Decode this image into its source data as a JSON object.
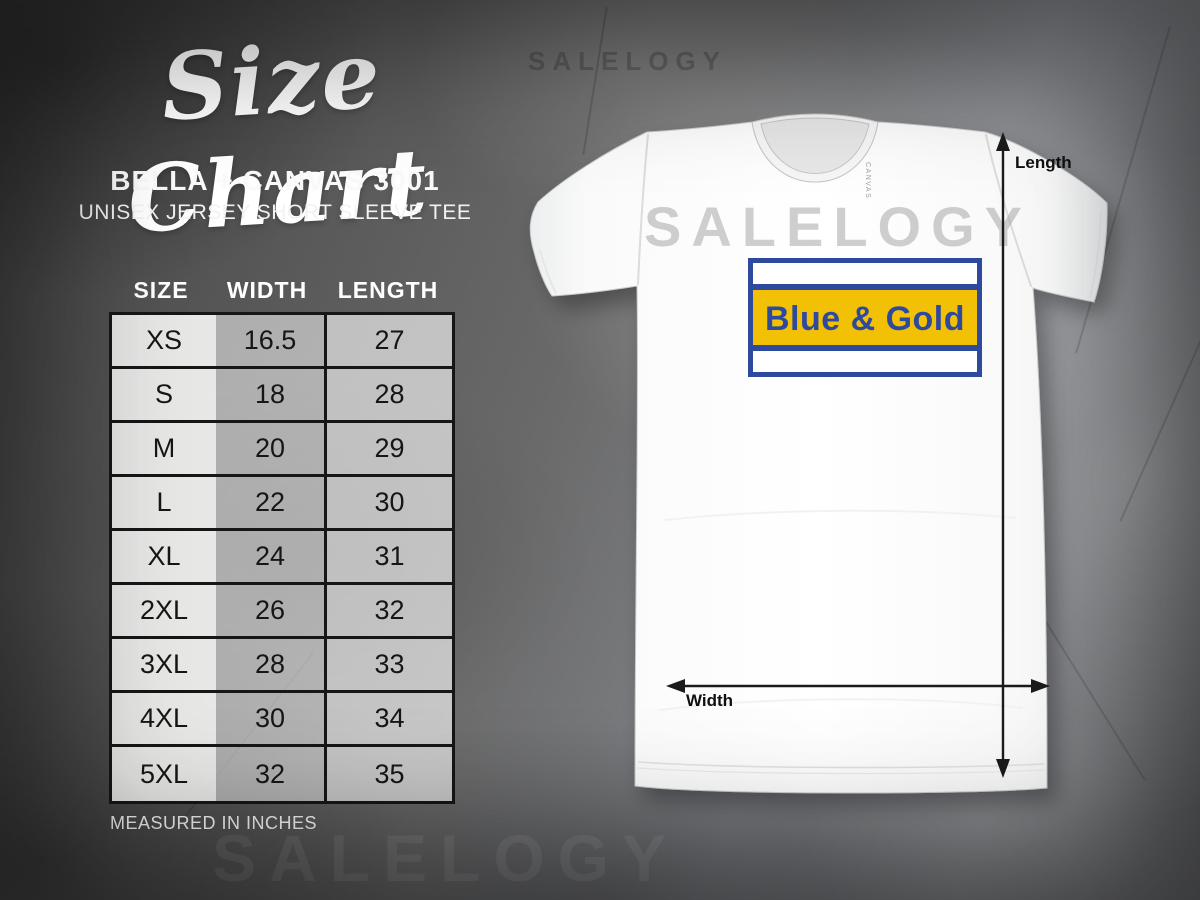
{
  "header": {
    "script_title": "Size Chart",
    "product": "BELLA + CANVAS 3001",
    "subtitle": "UNISEX JERSEY SHORT SLEEVE TEE"
  },
  "size_table": {
    "columns": [
      "SIZE",
      "WIDTH",
      "LENGTH"
    ],
    "rows": [
      [
        "XS",
        "16.5",
        "27"
      ],
      [
        "S",
        "18",
        "28"
      ],
      [
        "M",
        "20",
        "29"
      ],
      [
        "L",
        "22",
        "30"
      ],
      [
        "XL",
        "24",
        "31"
      ],
      [
        "2XL",
        "26",
        "32"
      ],
      [
        "3XL",
        "28",
        "33"
      ],
      [
        "4XL",
        "30",
        "34"
      ],
      [
        "5XL",
        "32",
        "35"
      ]
    ],
    "footnote": "MEASURED IN INCHES"
  },
  "chart_data": {
    "type": "table",
    "title": "Size Chart - Bella + Canvas 3001 Unisex Jersey Short Sleeve Tee",
    "columns": [
      "SIZE",
      "WIDTH",
      "LENGTH"
    ],
    "units": "inches",
    "rows": [
      [
        "XS",
        16.5,
        27
      ],
      [
        "S",
        18,
        28
      ],
      [
        "M",
        20,
        29
      ],
      [
        "L",
        22,
        30
      ],
      [
        "XL",
        24,
        31
      ],
      [
        "2XL",
        26,
        32
      ],
      [
        "3XL",
        28,
        33
      ],
      [
        "4XL",
        30,
        34
      ],
      [
        "5XL",
        32,
        35
      ]
    ]
  },
  "shirt": {
    "design": {
      "text": "Blue & Gold",
      "blue_hex": "#2e4a9e",
      "gold_hex": "#f2c105",
      "stripe_hex": "#ffffff"
    },
    "neck_label": "CANVAS",
    "chest_watermark": "SALELOGY",
    "length_arrow_label": "Length",
    "width_arrow_label": "Width"
  },
  "watermarks": {
    "top": "SALELOGY",
    "bottom": "SALELOGY"
  }
}
